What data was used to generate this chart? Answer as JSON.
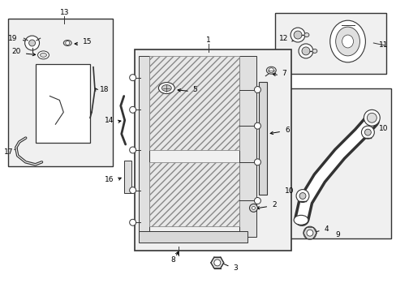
{
  "bg_color": "#ffffff",
  "fig_width": 4.89,
  "fig_height": 3.6,
  "dpi": 100,
  "line_color": "#333333",
  "label_fontsize": 6.5,
  "box_bg": "#f0f0f0",
  "part_fill": "#e8e8e8",
  "hatch_fill": "#e0e0e0"
}
